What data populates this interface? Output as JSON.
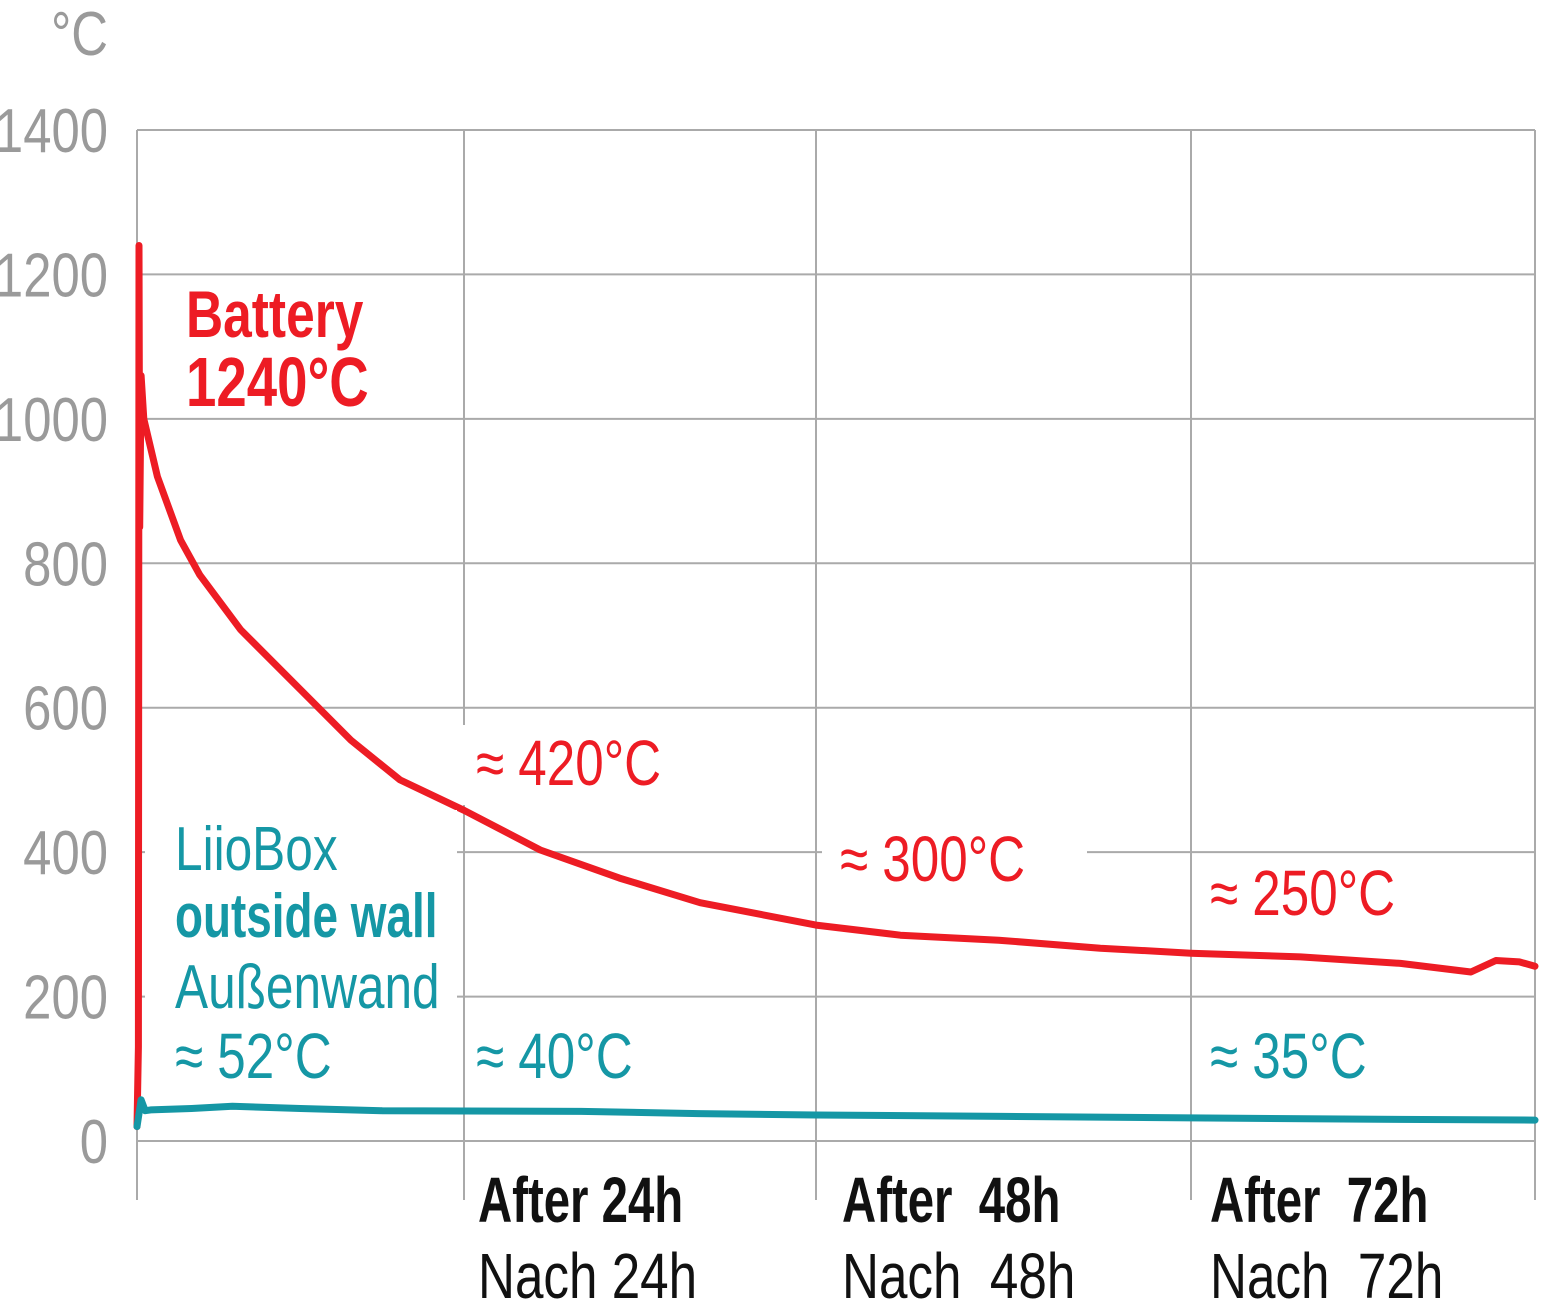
{
  "chart_data": {
    "type": "line",
    "title": "",
    "ylabel": "°C",
    "xlabel": "",
    "ylim": [
      0,
      1400
    ],
    "yticks": [
      0,
      200,
      400,
      600,
      800,
      1000,
      1200,
      1400
    ],
    "x_unit": "hours",
    "xlim": [
      0,
      94
    ],
    "x_gridlines": [
      0,
      24,
      48,
      72,
      94
    ],
    "grid": true,
    "x_tick_labels": [
      {
        "x": 24,
        "en": "After 24h",
        "de": "Nach 24h"
      },
      {
        "x": 48,
        "en": "After  48h",
        "de": "Nach  48h"
      },
      {
        "x": 72,
        "en": "After  72h",
        "de": "Nach  72h"
      }
    ],
    "series": [
      {
        "name": "Battery",
        "color": "#ed1c24",
        "label_title": "Battery",
        "label_peak": "1240°C",
        "x": [
          0,
          0.1,
          0.15,
          0.2,
          0.3,
          0.5,
          1.5,
          3.2,
          4.6,
          7.6,
          12,
          15.7,
          19.3,
          24,
          29.2,
          34.6,
          40.1,
          48,
          53.4,
          59.7,
          66.2,
          72,
          79,
          85.4,
          89.9,
          91.5,
          93,
          94
        ],
        "y": [
          20,
          130,
          1240,
          850,
          1060,
          1000,
          920,
          832,
          784,
          708,
          625,
          555,
          500,
          458,
          403,
          364,
          330,
          299,
          285,
          278,
          267,
          260,
          255,
          246,
          234,
          250,
          248,
          242
        ]
      },
      {
        "name": "LiioBox outside wall / Außenwand",
        "color": "#1597a5",
        "label_lines": [
          "LiioBox",
          "outside wall",
          "Außenwand"
        ],
        "x": [
          0,
          0.3,
          0.6,
          1,
          4,
          7,
          12,
          18,
          24,
          32,
          40,
          48,
          60,
          72,
          84,
          94
        ],
        "y": [
          20,
          57,
          42,
          43,
          45,
          48,
          45,
          42,
          41.5,
          41,
          38,
          36,
          34,
          32,
          30,
          29
        ]
      }
    ],
    "annotations": [
      {
        "series": 0,
        "text": "≈ 420°C"
      },
      {
        "series": 0,
        "text": "≈ 300°C"
      },
      {
        "series": 0,
        "text": "≈ 250°C"
      },
      {
        "series": 1,
        "text": "≈ 52°C"
      },
      {
        "series": 1,
        "text": "≈ 40°C"
      },
      {
        "series": 1,
        "text": "≈ 35°C"
      }
    ]
  }
}
